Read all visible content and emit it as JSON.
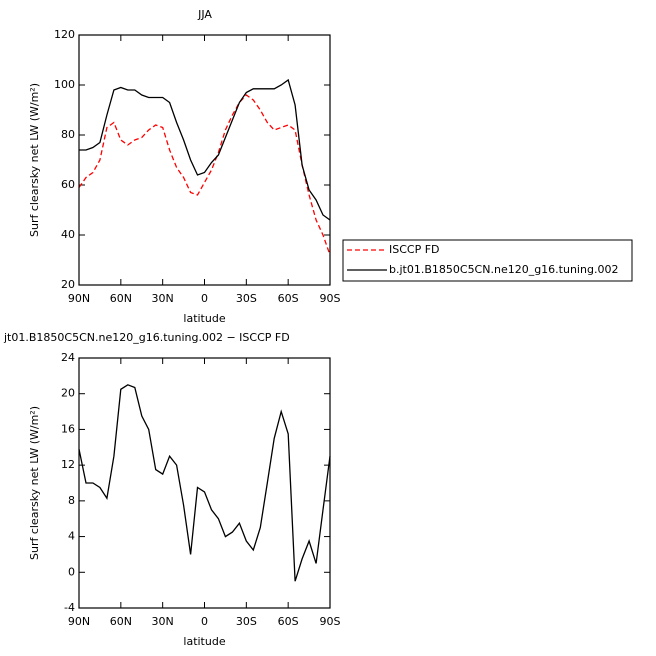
{
  "chart_data": [
    {
      "type": "line",
      "title": "JJA",
      "xlabel": "latitude",
      "ylabel": "Surf clearsky net LW (W/m²)",
      "x": [
        90,
        85,
        80,
        75,
        70,
        65,
        60,
        55,
        50,
        45,
        40,
        35,
        30,
        25,
        20,
        15,
        10,
        5,
        0,
        -5,
        -10,
        -15,
        -20,
        -25,
        -30,
        -35,
        -40,
        -45,
        -50,
        -55,
        -60,
        -65,
        -70,
        -75,
        -80,
        -85,
        -90
      ],
      "series": [
        {
          "name": "ISCCP FD",
          "color": "#ff0000",
          "linestyle": "dashed",
          "values": [
            59,
            63,
            65,
            70,
            83,
            85,
            78,
            76,
            78,
            79,
            82,
            84,
            83,
            74,
            67,
            63,
            57,
            56,
            61,
            66,
            73,
            82,
            88,
            93,
            96,
            94,
            90,
            85,
            82,
            83,
            84,
            82,
            68,
            56,
            46,
            40,
            32
          ]
        },
        {
          "name": "b.jt01.B1850C5CN.ne120_g16.tuning.002",
          "color": "#000000",
          "linestyle": "solid",
          "values": [
            74,
            74,
            75,
            77,
            88,
            98,
            99,
            98,
            98,
            96,
            95,
            95,
            95,
            93,
            85,
            78,
            70,
            64,
            65,
            69,
            72,
            79,
            86,
            93,
            97,
            98.5,
            98.5,
            98.5,
            98.5,
            100,
            102,
            92,
            68,
            58,
            54,
            48,
            46
          ]
        }
      ],
      "xlim": [
        90,
        -90
      ],
      "xticks": [
        {
          "value": 90,
          "label": "90N"
        },
        {
          "value": 60,
          "label": "60N"
        },
        {
          "value": 30,
          "label": "30N"
        },
        0,
        {
          "value": -30,
          "label": "30S"
        },
        {
          "value": -60,
          "label": "60S"
        },
        {
          "value": -90,
          "label": "90S"
        }
      ],
      "ylim": [
        20,
        120
      ],
      "yticks": [
        20,
        40,
        60,
        80,
        100,
        120
      ],
      "legend": "outside-right"
    },
    {
      "type": "line",
      "title": "jt01.B1850C5CN.ne120_g16.tuning.002 − ISCCP FD",
      "xlabel": "latitude",
      "ylabel": "Surf clearsky net LW (W/m²)",
      "x": [
        90,
        85,
        80,
        75,
        70,
        65,
        60,
        55,
        50,
        45,
        40,
        35,
        30,
        25,
        20,
        15,
        10,
        5,
        0,
        -5,
        -10,
        -15,
        -20,
        -25,
        -30,
        -35,
        -40,
        -45,
        -50,
        -55,
        -60,
        -65,
        -70,
        -75,
        -80,
        -85,
        -90
      ],
      "series": [
        {
          "color": "#000000",
          "linestyle": "solid",
          "values": [
            13.8,
            10,
            10,
            9.5,
            8.3,
            13,
            20.5,
            21,
            20.7,
            17.5,
            16,
            11.5,
            11,
            13,
            12,
            7.5,
            2,
            9.5,
            9,
            7,
            6,
            4,
            4.5,
            5.5,
            3.5,
            2.5,
            5,
            10,
            15,
            18,
            15.5,
            -1,
            1.5,
            3.5,
            1,
            7,
            13
          ]
        }
      ],
      "xlim": [
        90,
        -90
      ],
      "xticks": [
        {
          "value": 90,
          "label": "90N"
        },
        {
          "value": 60,
          "label": "60N"
        },
        {
          "value": 30,
          "label": "30N"
        },
        0,
        {
          "value": -30,
          "label": "30S"
        },
        {
          "value": -60,
          "label": "60S"
        },
        {
          "value": -90,
          "label": "90S"
        }
      ],
      "ylim": [
        -4,
        24
      ],
      "yticks": [
        -4,
        0,
        4,
        8,
        12,
        16,
        20,
        24
      ]
    }
  ]
}
